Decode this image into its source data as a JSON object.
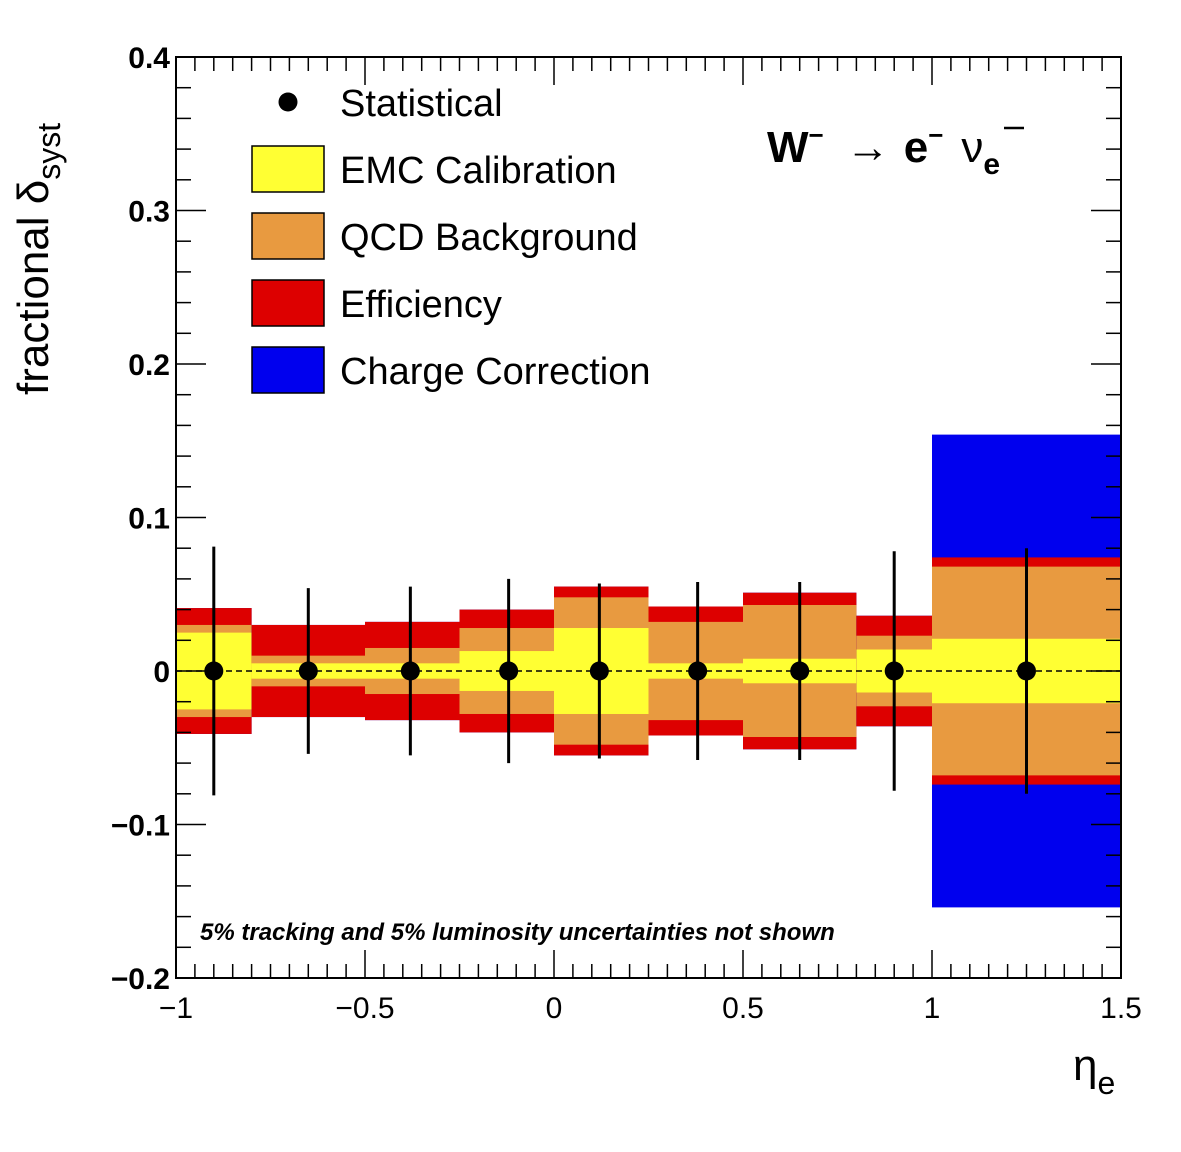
{
  "chart_data": {
    "type": "band",
    "title": "",
    "xlabel": "η_e",
    "ylabel": "fractional δ_syst",
    "xlim": [
      -1,
      1.5
    ],
    "ylim": [
      -0.2,
      0.4
    ],
    "x_ticks": [
      "−1",
      "−0.5",
      "0",
      "0.5",
      "1",
      "1.5"
    ],
    "y_ticks": [
      "−0.2",
      "−0.1",
      "0",
      "0.1",
      "0.2",
      "0.3",
      "0.4"
    ],
    "reaction": {
      "w": "W",
      "w_sup": "−",
      "arrow": "→",
      "e": "e",
      "e_sup": "−",
      "nu": "ν",
      "nu_sub": "e"
    },
    "note": "5% tracking and 5% luminosity uncertainties not shown",
    "legend": [
      {
        "label": "Statistical",
        "kind": "marker",
        "color": "#000000"
      },
      {
        "label": "EMC Calibration",
        "kind": "box",
        "color": "#ffff33"
      },
      {
        "label": "QCD Background",
        "kind": "box",
        "color": "#e89a40"
      },
      {
        "label": "Efficiency",
        "kind": "box",
        "color": "#dd0000"
      },
      {
        "label": "Charge Correction",
        "kind": "box",
        "color": "#0000ee"
      }
    ],
    "bins": [
      {
        "lo": -1.0,
        "hi": -0.8,
        "center": -0.9,
        "emc": 0.025,
        "qcd": 0.03,
        "eff": 0.041,
        "charge": 0.041,
        "stat": 0.081
      },
      {
        "lo": -0.8,
        "hi": -0.5,
        "center": -0.65,
        "emc": 0.005,
        "qcd": 0.01,
        "eff": 0.03,
        "charge": 0.03,
        "stat": 0.054
      },
      {
        "lo": -0.5,
        "hi": -0.25,
        "center": -0.38,
        "emc": 0.005,
        "qcd": 0.015,
        "eff": 0.032,
        "charge": 0.032,
        "stat": 0.055
      },
      {
        "lo": -0.25,
        "hi": 0.0,
        "center": -0.12,
        "emc": 0.013,
        "qcd": 0.028,
        "eff": 0.04,
        "charge": 0.04,
        "stat": 0.06
      },
      {
        "lo": 0.0,
        "hi": 0.25,
        "center": 0.12,
        "emc": 0.028,
        "qcd": 0.048,
        "eff": 0.055,
        "charge": 0.055,
        "stat": 0.057
      },
      {
        "lo": 0.25,
        "hi": 0.5,
        "center": 0.38,
        "emc": 0.005,
        "qcd": 0.032,
        "eff": 0.042,
        "charge": 0.042,
        "stat": 0.058
      },
      {
        "lo": 0.5,
        "hi": 0.8,
        "center": 0.65,
        "emc": 0.008,
        "qcd": 0.043,
        "eff": 0.051,
        "charge": 0.051,
        "stat": 0.058
      },
      {
        "lo": 0.8,
        "hi": 1.0,
        "center": 0.9,
        "emc": 0.014,
        "qcd": 0.023,
        "eff": 0.036,
        "charge": 0.036,
        "stat": 0.078
      },
      {
        "lo": 1.0,
        "hi": 1.5,
        "center": 1.25,
        "emc": 0.021,
        "qcd": 0.068,
        "eff": 0.074,
        "charge": 0.154,
        "stat": 0.08
      }
    ]
  }
}
